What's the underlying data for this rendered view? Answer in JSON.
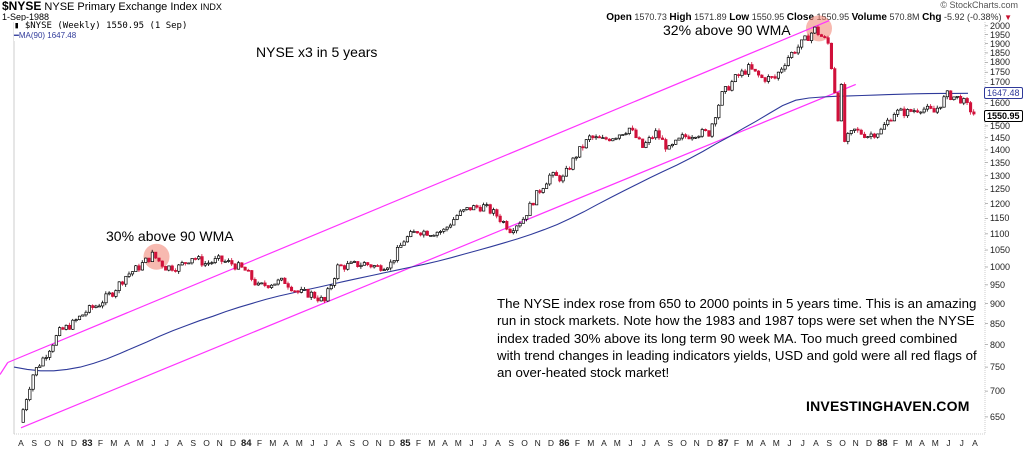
{
  "header": {
    "symbol": "$NYSE",
    "name": "NYSE Primary Exchange Index",
    "exchange": "INDX",
    "date": "1-Sep-1988",
    "copyright": "© StockCharts.com",
    "ohlc": {
      "open_label": "Open",
      "open": "1570.73",
      "high_label": "High",
      "high": "1571.89",
      "low_label": "Low",
      "low": "1550.95",
      "close_label": "Close",
      "close": "1550.95",
      "volume_label": "Volume",
      "volume": "570.8M",
      "chg_label": "Chg",
      "chg": "-5.92 (-0.38%)",
      "chg_icon": "down-triangle-icon"
    }
  },
  "legend": {
    "price": "$NYSE (Weekly) 1550.95 (1 Sep)",
    "ma": "MA(90) 1647.48"
  },
  "annotations": {
    "title": "NYSE x3 in 5 years",
    "top1983": "30% above 90 WMA",
    "top1987": "32% above 90 WMA",
    "note": "The NYSE index rose from 650 to 2000 points in 5 years time. This is an amazing run in stock markets. Note how the 1983 and 1987 tops were set when the NYSE index traded 30% above its long term 90 week MA. Too much greed combined with trend changes in leading indicators yields, USD and gold were all red flags of an over-heated stock market!",
    "brand": "INVESTINGHAVEN.COM"
  },
  "colors": {
    "up": "#000000",
    "down": "#d0103a",
    "ma": "#2f3a9a",
    "channel": "#ff33ff",
    "highlight": "#f08070"
  },
  "chart_data": {
    "type": "candlestick",
    "title": "$NYSE NYSE Primary Exchange Index (Weekly)",
    "xlabel": "",
    "ylabel": "",
    "yscale": "log",
    "ylim": [
      600,
      2000
    ],
    "y_ticks": [
      650,
      700,
      750,
      800,
      850,
      900,
      950,
      1000,
      1050,
      1100,
      1150,
      1200,
      1250,
      1300,
      1350,
      1400,
      1450,
      1500,
      1600,
      1650,
      1700,
      1750,
      1800,
      1850,
      1900,
      1950,
      2000
    ],
    "x_tick_labels": [
      "A",
      "S",
      "O",
      "N",
      "D",
      "83",
      "F",
      "M",
      "A",
      "M",
      "J",
      "J",
      "A",
      "S",
      "O",
      "N",
      "D",
      "84",
      "F",
      "M",
      "A",
      "M",
      "J",
      "J",
      "A",
      "S",
      "O",
      "N",
      "D",
      "85",
      "F",
      "M",
      "A",
      "M",
      "J",
      "J",
      "A",
      "S",
      "O",
      "N",
      "D",
      "86",
      "F",
      "M",
      "A",
      "M",
      "J",
      "J",
      "A",
      "S",
      "O",
      "N",
      "D",
      "87",
      "F",
      "M",
      "A",
      "M",
      "J",
      "J",
      "A",
      "S",
      "O",
      "N",
      "D",
      "88",
      "F",
      "M",
      "A",
      "M",
      "J",
      "J",
      "A"
    ],
    "last_close": 1550.95,
    "ma90_last": 1647.48,
    "price_path_monthly": [
      {
        "m": "1982-08",
        "v": 640
      },
      {
        "m": "1982-09",
        "v": 735
      },
      {
        "m": "1982-10",
        "v": 780
      },
      {
        "m": "1982-11",
        "v": 830
      },
      {
        "m": "1982-12",
        "v": 850
      },
      {
        "m": "1983-01",
        "v": 880
      },
      {
        "m": "1983-02",
        "v": 900
      },
      {
        "m": "1983-03",
        "v": 930
      },
      {
        "m": "1983-04",
        "v": 975
      },
      {
        "m": "1983-05",
        "v": 1000
      },
      {
        "m": "1983-06",
        "v": 1035
      },
      {
        "m": "1983-07",
        "v": 1000
      },
      {
        "m": "1983-08",
        "v": 1000
      },
      {
        "m": "1983-09",
        "v": 1030
      },
      {
        "m": "1983-10",
        "v": 1010
      },
      {
        "m": "1983-11",
        "v": 1020
      },
      {
        "m": "1983-12",
        "v": 1010
      },
      {
        "m": "1984-01",
        "v": 990
      },
      {
        "m": "1984-02",
        "v": 945
      },
      {
        "m": "1984-03",
        "v": 955
      },
      {
        "m": "1984-04",
        "v": 960
      },
      {
        "m": "1984-05",
        "v": 930
      },
      {
        "m": "1984-06",
        "v": 925
      },
      {
        "m": "1984-07",
        "v": 905
      },
      {
        "m": "1984-08",
        "v": 1000
      },
      {
        "m": "1984-09",
        "v": 1005
      },
      {
        "m": "1984-10",
        "v": 1010
      },
      {
        "m": "1984-11",
        "v": 1000
      },
      {
        "m": "1984-12",
        "v": 1010
      },
      {
        "m": "1985-01",
        "v": 1080
      },
      {
        "m": "1985-02",
        "v": 1110
      },
      {
        "m": "1985-03",
        "v": 1105
      },
      {
        "m": "1985-04",
        "v": 1110
      },
      {
        "m": "1985-05",
        "v": 1160
      },
      {
        "m": "1985-06",
        "v": 1185
      },
      {
        "m": "1985-07",
        "v": 1190
      },
      {
        "m": "1985-08",
        "v": 1160
      },
      {
        "m": "1985-09",
        "v": 1115
      },
      {
        "m": "1985-10",
        "v": 1150
      },
      {
        "m": "1985-11",
        "v": 1230
      },
      {
        "m": "1985-12",
        "v": 1300
      },
      {
        "m": "1986-01",
        "v": 1290
      },
      {
        "m": "1986-02",
        "v": 1380
      },
      {
        "m": "1986-03",
        "v": 1450
      },
      {
        "m": "1986-04",
        "v": 1440
      },
      {
        "m": "1986-05",
        "v": 1460
      },
      {
        "m": "1986-06",
        "v": 1490
      },
      {
        "m": "1986-07",
        "v": 1410
      },
      {
        "m": "1986-08",
        "v": 1470
      },
      {
        "m": "1986-09",
        "v": 1400
      },
      {
        "m": "1986-10",
        "v": 1450
      },
      {
        "m": "1986-11",
        "v": 1470
      },
      {
        "m": "1986-12",
        "v": 1470
      },
      {
        "m": "1987-01",
        "v": 1640
      },
      {
        "m": "1987-02",
        "v": 1720
      },
      {
        "m": "1987-03",
        "v": 1770
      },
      {
        "m": "1987-04",
        "v": 1720
      },
      {
        "m": "1987-05",
        "v": 1720
      },
      {
        "m": "1987-06",
        "v": 1830
      },
      {
        "m": "1987-07",
        "v": 1900
      },
      {
        "m": "1987-08",
        "v": 1980
      },
      {
        "m": "1987-09",
        "v": 1900
      },
      {
        "m": "1987-10",
        "v": 1420
      },
      {
        "m": "1987-11",
        "v": 1480
      },
      {
        "m": "1987-12",
        "v": 1460
      },
      {
        "m": "1988-01",
        "v": 1480
      },
      {
        "m": "1988-02",
        "v": 1560
      },
      {
        "m": "1988-03",
        "v": 1560
      },
      {
        "m": "1988-04",
        "v": 1580
      },
      {
        "m": "1988-05",
        "v": 1560
      },
      {
        "m": "1988-06",
        "v": 1640
      },
      {
        "m": "1988-07",
        "v": 1620
      },
      {
        "m": "1988-08",
        "v": 1555
      }
    ],
    "ma90_path_monthly": [
      750,
      745,
      742,
      742,
      745,
      750,
      758,
      768,
      780,
      793,
      806,
      820,
      833,
      845,
      857,
      868,
      880,
      891,
      901,
      911,
      920,
      928,
      936,
      944,
      952,
      960,
      968,
      976,
      984,
      992,
      1000,
      1008,
      1017,
      1027,
      1038,
      1049,
      1060,
      1072,
      1084,
      1098,
      1113,
      1130,
      1150,
      1172,
      1196,
      1220,
      1244,
      1268,
      1292,
      1316,
      1340,
      1366,
      1394,
      1425,
      1455,
      1488,
      1520,
      1555,
      1590,
      1615,
      1625,
      1630,
      1633,
      1635,
      1637,
      1639,
      1641,
      1643,
      1645,
      1646,
      1647,
      1647,
      1647.48
    ],
    "channel_upper": {
      "start": {
        "m": "1982-07",
        "v": 760
      },
      "end": {
        "m": "1987-09",
        "v": 2030
      }
    },
    "channel_lower": {
      "start": {
        "m": "1982-08",
        "v": 630
      },
      "end": {
        "m": "1987-11",
        "v": 1690
      }
    },
    "highlight_circles": [
      {
        "m": "1983-06",
        "v": 1030
      },
      {
        "m": "1987-08",
        "v": 1985
      }
    ]
  }
}
